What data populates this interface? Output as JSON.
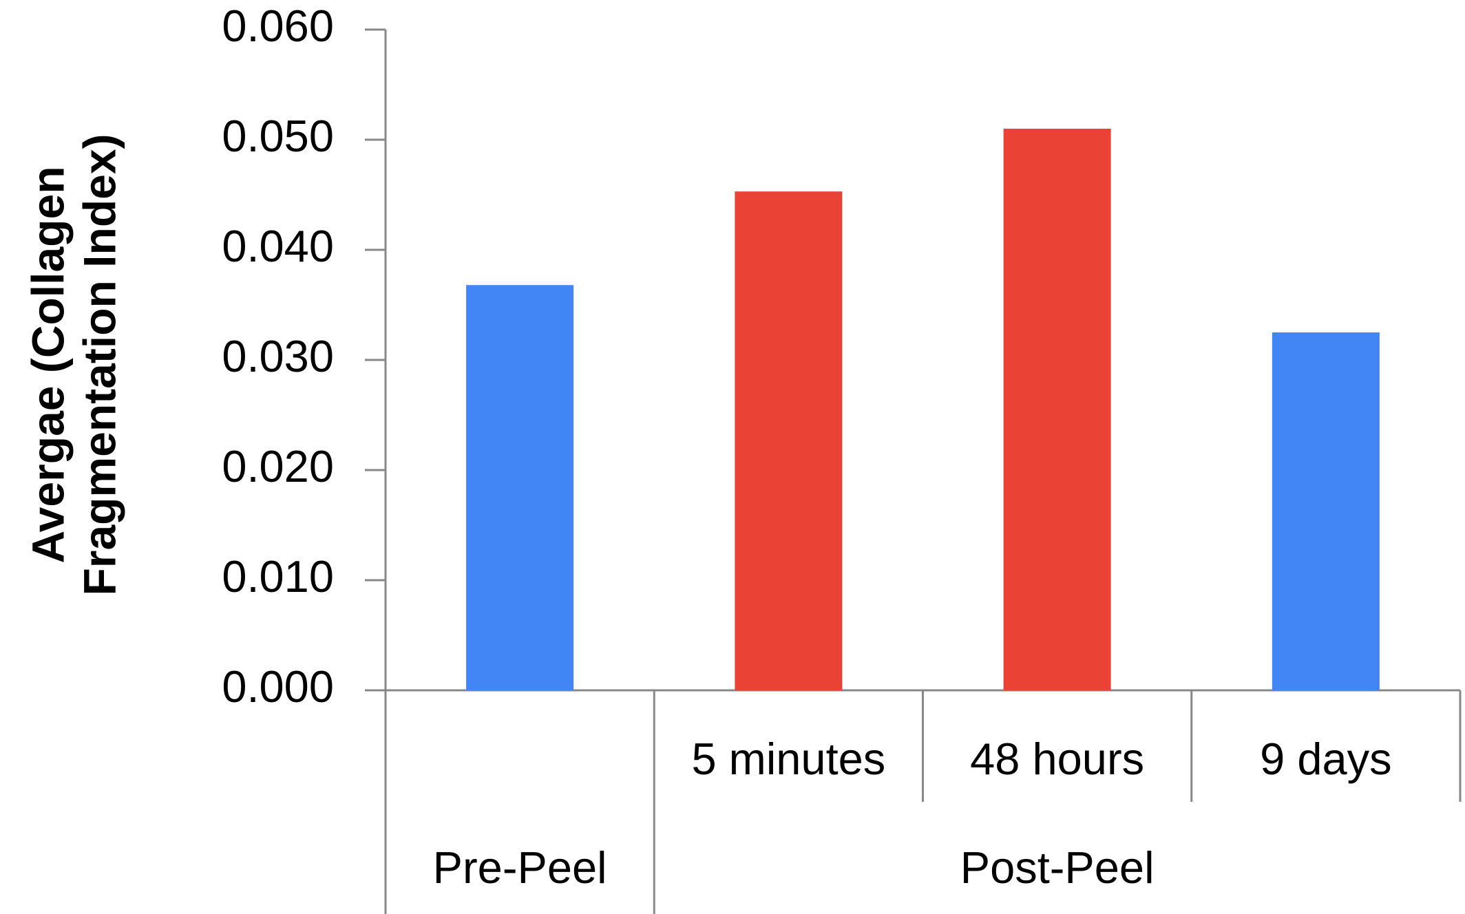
{
  "chart_data": {
    "type": "bar",
    "y_label_lines": [
      "Avergae (Collagen",
      "Fragmentation Index)"
    ],
    "groups": [
      {
        "name": "Pre-Peel",
        "categories": [
          null
        ]
      },
      {
        "name": "Post-Peel",
        "categories": [
          "5 minutes",
          "48 hours",
          "9 days"
        ]
      }
    ],
    "values": [
      0.0368,
      0.0453,
      0.051,
      0.0325
    ],
    "colors": [
      "#4285f4",
      "#ea4335",
      "#ea4335",
      "#4285f4"
    ],
    "ylim": [
      0,
      0.06
    ],
    "yticks": [
      {
        "value": 0,
        "label": "0.000"
      },
      {
        "value": 0.01,
        "label": "0.010"
      },
      {
        "value": 0.02,
        "label": "0.020"
      },
      {
        "value": 0.03,
        "label": "0.030"
      },
      {
        "value": 0.04,
        "label": "0.040"
      },
      {
        "value": 0.05,
        "label": "0.050"
      },
      {
        "value": 0.06,
        "label": "0.060"
      }
    ],
    "grid": false
  }
}
